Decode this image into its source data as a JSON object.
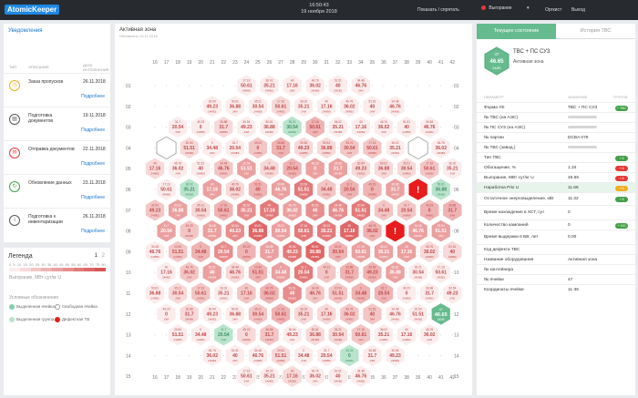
{
  "header": {
    "logo": "AtomicKeeper",
    "time": "16:50:43",
    "date": "19 ноября 2018",
    "show_hide": "Показать / спрятать",
    "mode": "Выгорание",
    "user": "Оргкист",
    "logout": "Выход"
  },
  "notifications": {
    "title": "Уведомления",
    "col_type": "ТИП",
    "col_desc": "ОПИСАНИЕ",
    "col_date": "ДАТА ИСПОЛНЕНИЯ",
    "more": "Подробнее",
    "items": [
      {
        "icon": "clock-icon",
        "glyph": "◷",
        "color": "#f0ad1e",
        "text": "Заказ пропусков",
        "date": "26.11.2018"
      },
      {
        "icon": "document-icon",
        "glyph": "▤",
        "color": "#555555",
        "text": "Подготовка документов",
        "date": "19.11.2018"
      },
      {
        "icon": "send-icon",
        "glyph": "✉",
        "color": "#e53935",
        "text": "Отправка документов",
        "date": "22.11.2018"
      },
      {
        "icon": "refresh-icon",
        "glyph": "↻",
        "color": "#43a047",
        "text": "Обновление данных",
        "date": "23.11.2018"
      },
      {
        "icon": "info-icon",
        "glyph": "i",
        "color": "#555555",
        "text": "Подготовка к инвентаризации",
        "date": "26.11.2018"
      }
    ]
  },
  "legend": {
    "title": "Легенда",
    "page": "1",
    "page2": "2",
    "ticks": [
      "0",
      "5",
      "10",
      "15",
      "20",
      "25",
      "30",
      "35",
      "40",
      "45",
      "50",
      "55",
      "60",
      "65",
      "70",
      "75",
      "80"
    ],
    "burnup_label": "Выгорание, МВт·сут/кг U",
    "conventions_label": "Условные обозначения",
    "items": [
      {
        "label": "Выделенная ячейка",
        "color": "#7fd1a6"
      },
      {
        "label": "Свободная ячейка",
        "color": "#ffffff"
      },
      {
        "label": "Выделенная группа",
        "color": "#b9e4cc"
      },
      {
        "label": "Дефектная ТВ",
        "color": "#e81c1c"
      }
    ],
    "colors": [
      "#fbecec",
      "#f7d9d9",
      "#f3c6c6",
      "#efb3b3",
      "#eba0a0",
      "#e78d8d",
      "#e37a7a",
      "#df6767",
      "#db5454"
    ]
  },
  "map": {
    "title": "Активная зона",
    "subtitle": "Обновлено 19.11.2018",
    "col_labels": [
      "16",
      "17",
      "18",
      "19",
      "20",
      "21",
      "22",
      "23",
      "24",
      "25",
      "26",
      "27",
      "28",
      "29",
      "30",
      "31",
      "32",
      "33",
      "34",
      "35",
      "36",
      "37",
      "38",
      "39",
      "40",
      "41",
      "42"
    ],
    "row_labels": [
      "01",
      "02",
      "03",
      "04",
      "05",
      "06",
      "07",
      "08",
      "09",
      "10",
      "11",
      "12",
      "13",
      "14",
      "15"
    ],
    "hex_values": [
      "50.61",
      "46.76",
      "31.7",
      "35.21",
      "51.51",
      "49.23",
      "17.16",
      "34.48",
      "36.88",
      "36.02",
      "20.54",
      "30.54",
      "40",
      "0"
    ],
    "hex_sub": "24ИБ6",
    "hex_sub2": "24ИБ2",
    "hex_sub3": "24И",
    "selected_value": "46.65",
    "selected_id": "47",
    "selected_sub": "24ИБ",
    "defect_mark": "!"
  },
  "details": {
    "tab_current": "Текущее состояние",
    "tab_history": "История ТВС",
    "badge_id": "47",
    "badge_value": "46.65",
    "badge_sub": "24ИБ",
    "title": "ТВС + ПС СУЗ",
    "subtitle": "Активная зона",
    "col_param": "ПАРАМЕТР",
    "col_value": "ЗНАЧЕНИЕ",
    "col_group": "ГРУППА",
    "rows": [
      {
        "label": "Форма УЕ",
        "value": "ТВС + ПС СУЗ",
        "blur": false,
        "badge": "+ ТВС",
        "badge_color": "#43a047"
      },
      {
        "label": "№ ТВС (на АЭС)",
        "value": "",
        "blur": true,
        "badge": "",
        "badge_color": ""
      },
      {
        "label": "№ ПС СУЗ (на АЭС)",
        "value": "",
        "blur": true,
        "badge": "",
        "badge_color": ""
      },
      {
        "label": "№ партии",
        "value": "DCBA 079",
        "blur": false,
        "badge": "",
        "badge_color": ""
      },
      {
        "label": "№ ТВС (завод.)",
        "value": "",
        "blur": true,
        "badge": "",
        "badge_color": ""
      },
      {
        "label": "Тип ТВС",
        "value": "",
        "blur": false,
        "badge": "+ 5",
        "badge_color": "#43a047"
      },
      {
        "label": "Обогащение, %",
        "value": "1.34",
        "blur": false,
        "badge": "+ 6",
        "badge_color": "#e53935"
      },
      {
        "label": "Выгорание, МВт·сут/кг U",
        "value": "46.65",
        "blur": false,
        "badge": "+ 5",
        "badge_color": "#e53935"
      },
      {
        "label": "Наработка P/кг U",
        "value": "11.66",
        "blur": false,
        "badge": "+ 5",
        "badge_color": "#f0ad1e",
        "hl": true
      },
      {
        "label": "Остаточное энерговыделение, кВт",
        "value": "11.32",
        "blur": false,
        "badge": "+ 5",
        "badge_color": "#43a047"
      },
      {
        "label": "Время нахождения в ХСТ, сут",
        "value": "0",
        "blur": false,
        "badge": "",
        "badge_color": ""
      },
      {
        "label": "Количество кампаний",
        "value": "0",
        "blur": false,
        "badge": "+ 100",
        "badge_color": "#43a047"
      },
      {
        "label": "Время выдержки в БВ, лет",
        "value": "0.00",
        "blur": false,
        "badge": "",
        "badge_color": ""
      },
      {
        "label": "Код дефекта ТВС",
        "value": "",
        "blur": false,
        "badge": "",
        "badge_color": ""
      },
      {
        "label": "Название оборудования",
        "value": "Активная зона",
        "blur": false,
        "badge": "",
        "badge_color": ""
      },
      {
        "label": "№ контейнера",
        "value": "",
        "blur": false,
        "badge": "",
        "badge_color": ""
      },
      {
        "label": "№ ячейки",
        "value": "47",
        "blur": false,
        "badge": "",
        "badge_color": ""
      },
      {
        "label": "Координаты ячейки",
        "value": "11-36",
        "blur": false,
        "badge": "",
        "badge_color": ""
      }
    ]
  }
}
